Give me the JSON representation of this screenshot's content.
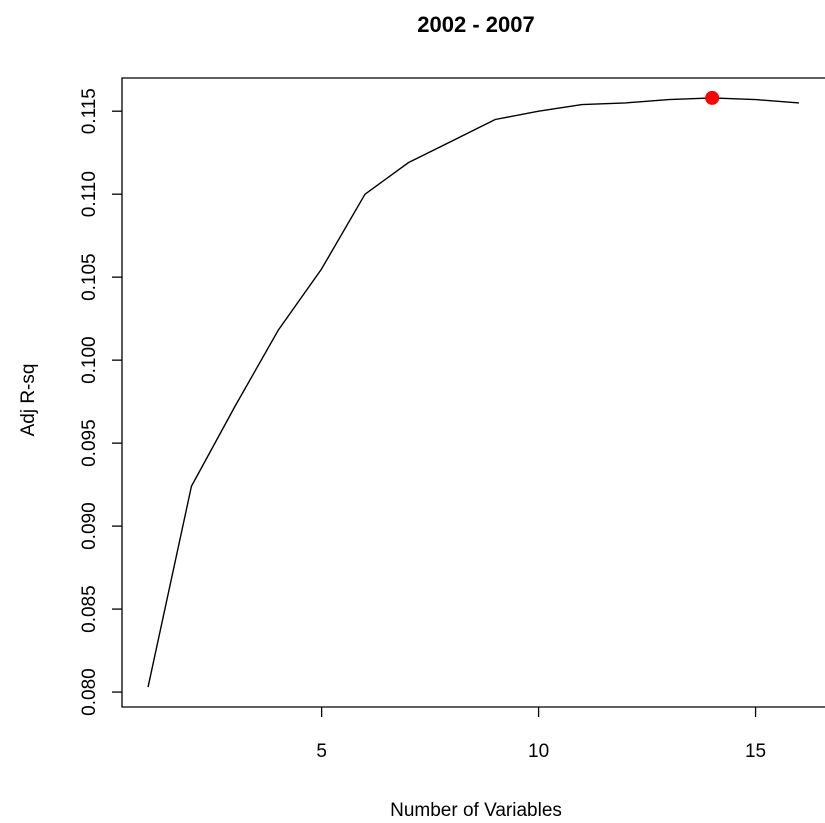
{
  "chart_data": {
    "type": "line",
    "title": "2002 - 2007",
    "xlabel": "Number of Variables",
    "ylabel": "Adj R-sq",
    "x": [
      1,
      2,
      3,
      4,
      5,
      6,
      7,
      8,
      9,
      10,
      11,
      12,
      13,
      14,
      15,
      16
    ],
    "series": [
      {
        "values": [
          0.0803,
          0.0924,
          0.0972,
          0.1018,
          0.1055,
          0.11,
          0.1119,
          0.1132,
          0.1145,
          0.115,
          0.1154,
          0.1155,
          0.1157,
          0.1158,
          0.1157,
          0.1155
        ]
      }
    ],
    "highlight": {
      "x": 14,
      "y": 0.1158,
      "color": "#ff0000"
    },
    "xlim": [
      0.4,
      16.6
    ],
    "ylim": [
      0.0791,
      0.117
    ],
    "xticks": [
      5,
      10,
      15
    ],
    "xtick_labels": [
      "5",
      "10",
      "15"
    ],
    "yticks": [
      0.08,
      0.085,
      0.09,
      0.095,
      0.1,
      0.105,
      0.11,
      0.115
    ],
    "ytick_labels": [
      "0.080",
      "0.085",
      "0.090",
      "0.095",
      "0.100",
      "0.105",
      "0.110",
      "0.115"
    ],
    "grid": false,
    "line_color": "#000000"
  }
}
